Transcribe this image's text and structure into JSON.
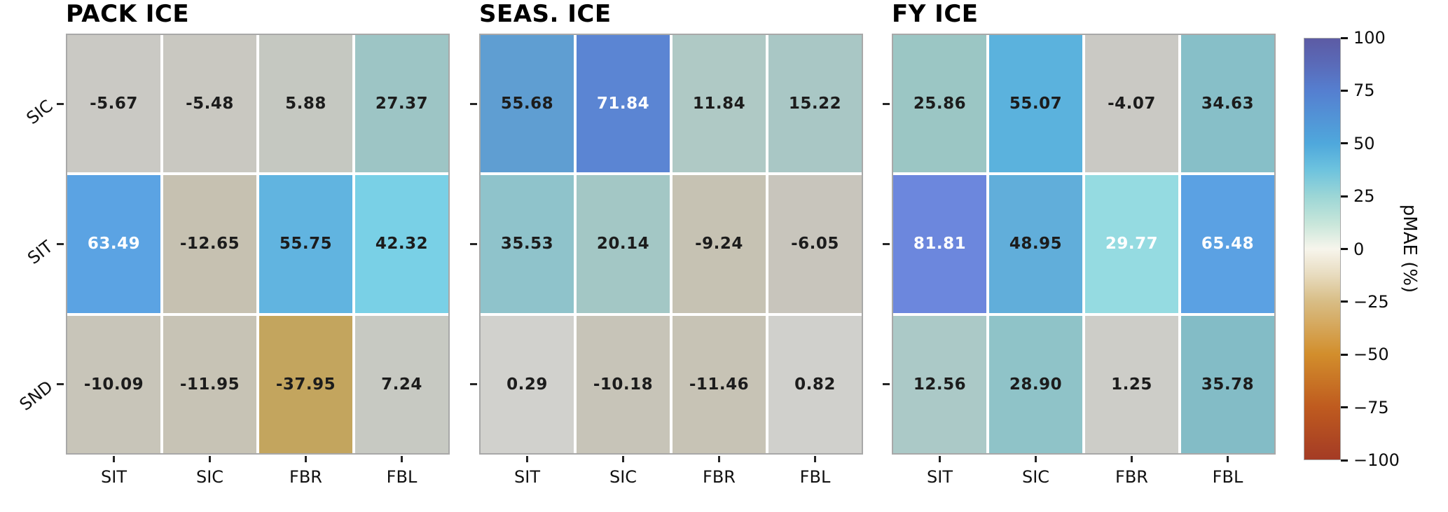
{
  "colors": {
    "background": "#ffffff",
    "panel_border": "#a8a8a8",
    "cell_gap": "#ffffff",
    "tick_color": "#262626",
    "annotation_dark": "#1c1c1c",
    "annotation_light": "#ffffff"
  },
  "chart_data": {
    "type": "heatmap",
    "x_labels": [
      "SIT",
      "SIC",
      "FBR",
      "FBL"
    ],
    "y_labels": [
      "SIC",
      "SIT",
      "SND"
    ],
    "value_range": [
      -100,
      100
    ],
    "grid": false,
    "panels": [
      {
        "title": "PACK ICE",
        "show_y_labels": true,
        "rows": [
          [
            {
              "value": -5.67,
              "bg": "#cac9c4",
              "text": "dark"
            },
            {
              "value": -5.48,
              "bg": "#c9c8c1",
              "text": "dark"
            },
            {
              "value": 5.88,
              "bg": "#c5c8c1",
              "text": "dark"
            },
            {
              "value": 27.37,
              "bg": "#9dc5c5",
              "text": "dark"
            }
          ],
          [
            {
              "value": 63.49,
              "bg": "#5ba3e3",
              "text": "light"
            },
            {
              "value": -12.65,
              "bg": "#c6c1b1",
              "text": "dark"
            },
            {
              "value": 55.75,
              "bg": "#61b4e0",
              "text": "dark"
            },
            {
              "value": 42.32,
              "bg": "#79d0e6",
              "text": "dark"
            }
          ],
          [
            {
              "value": -10.09,
              "bg": "#c8c5b9",
              "text": "dark"
            },
            {
              "value": -11.95,
              "bg": "#c7c3b5",
              "text": "dark"
            },
            {
              "value": -37.95,
              "bg": "#c3a55e",
              "text": "dark"
            },
            {
              "value": 7.24,
              "bg": "#c7c9c2",
              "text": "dark"
            }
          ]
        ]
      },
      {
        "title": "SEAS. ICE",
        "show_y_labels": false,
        "rows": [
          [
            {
              "value": 55.68,
              "bg": "#5f9ed2",
              "text": "dark"
            },
            {
              "value": 71.84,
              "bg": "#5b85d3",
              "text": "light"
            },
            {
              "value": 11.84,
              "bg": "#afc9c5",
              "text": "dark"
            },
            {
              "value": 15.22,
              "bg": "#a9c7c5",
              "text": "dark"
            }
          ],
          [
            {
              "value": 35.53,
              "bg": "#8fc3cb",
              "text": "dark"
            },
            {
              "value": 20.14,
              "bg": "#a3c7c5",
              "text": "dark"
            },
            {
              "value": -9.24,
              "bg": "#c6c2b3",
              "text": "dark"
            },
            {
              "value": -6.05,
              "bg": "#c8c5bc",
              "text": "dark"
            }
          ],
          [
            {
              "value": 0.29,
              "bg": "#d1d1cd",
              "text": "dark"
            },
            {
              "value": -10.18,
              "bg": "#c7c4b8",
              "text": "dark"
            },
            {
              "value": -11.46,
              "bg": "#c7c3b5",
              "text": "dark"
            },
            {
              "value": 0.82,
              "bg": "#d0d0cc",
              "text": "dark"
            }
          ]
        ]
      },
      {
        "title": "FY ICE",
        "show_y_labels": false,
        "rows": [
          [
            {
              "value": 25.86,
              "bg": "#9bc6c4",
              "text": "dark"
            },
            {
              "value": 55.07,
              "bg": "#5bb2dd",
              "text": "dark"
            },
            {
              "value": -4.07,
              "bg": "#cac9c4",
              "text": "dark"
            },
            {
              "value": 34.63,
              "bg": "#87bfc8",
              "text": "dark"
            }
          ],
          [
            {
              "value": 81.81,
              "bg": "#6c87dd",
              "text": "light"
            },
            {
              "value": 48.95,
              "bg": "#61aeda",
              "text": "dark"
            },
            {
              "value": 29.77,
              "bg": "#95dbe1",
              "text": "light"
            },
            {
              "value": 65.48,
              "bg": "#5ba1e3",
              "text": "light"
            }
          ],
          [
            {
              "value": 12.56,
              "bg": "#abc9c7",
              "text": "dark"
            },
            {
              "value": 28.9,
              "bg": "#8fc3c8",
              "text": "dark"
            },
            {
              "value": 1.25,
              "bg": "#cdcdc8",
              "text": "dark"
            },
            {
              "value": 35.78,
              "bg": "#83bcc6",
              "text": "dark"
            }
          ]
        ]
      }
    ],
    "colorbar": {
      "label": "pMAE (%)",
      "vmin": -100,
      "vmax": 100,
      "ticks": [
        100,
        75,
        50,
        25,
        0,
        -25,
        -50,
        -75,
        -100
      ],
      "tick_labels": [
        "100",
        "75",
        "50",
        "25",
        "0",
        "−25",
        "−50",
        "−75",
        "−100"
      ],
      "gradient_stops": [
        {
          "pos": 0.0,
          "color": "#5c5ba4"
        },
        {
          "pos": 0.06,
          "color": "#5a6ab8"
        },
        {
          "pos": 0.125,
          "color": "#557fd0"
        },
        {
          "pos": 0.25,
          "color": "#4fa8dc"
        },
        {
          "pos": 0.31,
          "color": "#6cc2de"
        },
        {
          "pos": 0.375,
          "color": "#9cd6d6"
        },
        {
          "pos": 0.44,
          "color": "#c8e6da"
        },
        {
          "pos": 0.5,
          "color": "#f7f5ec"
        },
        {
          "pos": 0.56,
          "color": "#e8dcc0"
        },
        {
          "pos": 0.625,
          "color": "#d8bd85"
        },
        {
          "pos": 0.75,
          "color": "#d28e2c"
        },
        {
          "pos": 0.875,
          "color": "#bf5b1f"
        },
        {
          "pos": 1.0,
          "color": "#a43b25"
        }
      ]
    }
  }
}
